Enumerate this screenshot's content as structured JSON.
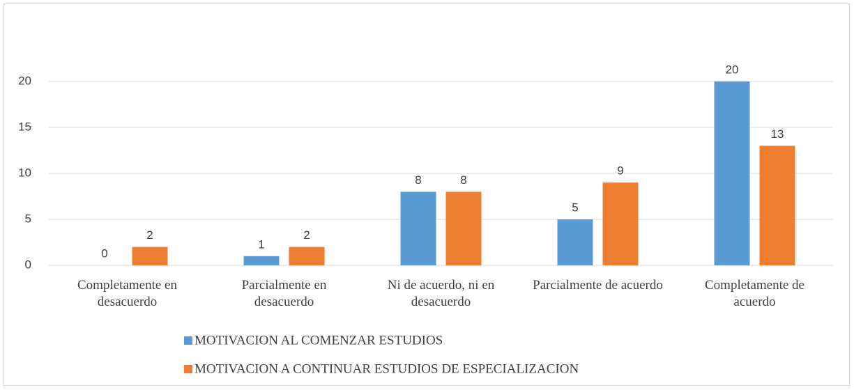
{
  "chart_data": {
    "type": "bar",
    "categories": [
      "Completamente en desacuerdo",
      "Parcialmente en desacuerdo",
      "Ni de acuerdo, ni en desacuerdo",
      "Parcialmente de acuerdo",
      "Completamente de acuerdo"
    ],
    "series": [
      {
        "name": "MOTIVACION AL COMENZAR ESTUDIOS",
        "color": "#5b9bd5",
        "values": [
          0,
          1,
          8,
          5,
          20
        ]
      },
      {
        "name": "MOTIVACION A CONTINUAR ESTUDIOS DE ESPECIALIZACION",
        "color": "#ed7d31",
        "values": [
          2,
          2,
          8,
          9,
          13
        ]
      }
    ],
    "ylim": [
      0,
      20
    ],
    "yticks": [
      0,
      5,
      10,
      15,
      20
    ],
    "grid": true,
    "legend": "bottom"
  }
}
